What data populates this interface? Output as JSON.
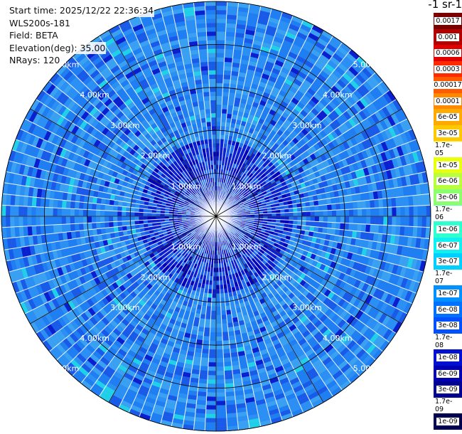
{
  "info": {
    "start_time": "Start time: 2025/12/22 22:36:34",
    "instrument": "WLS200s-181",
    "field": "Field: BETA",
    "elevation": "Elevation(deg): 35.00",
    "nrays": "NRays: 120"
  },
  "colorbar": {
    "title": "-1 sr-1",
    "labels": [
      "0.0017",
      "0.001",
      "0.0006",
      "0.0003",
      "0.00017",
      "0.0001",
      "6e-05",
      "3e-05",
      "1.7e-05",
      "1e-05",
      "6e-06",
      "3e-06",
      "1.7e-06",
      "1e-06",
      "6e-07",
      "3e-07",
      "1.7e-07",
      "1e-07",
      "6e-08",
      "3e-08",
      "1.7e-08",
      "1e-08",
      "6e-09",
      "3e-09",
      "1.7e-09",
      "1e-09"
    ],
    "colors": [
      "#7a0000",
      "#b00000",
      "#e00000",
      "#ff2a00",
      "#ff5a00",
      "#ff8a00",
      "#ffaa00",
      "#ffc800",
      "#ffe800",
      "#e8ff10",
      "#b8ff40",
      "#8cff70",
      "#60ffa0",
      "#30ffd0",
      "#10f0f0",
      "#00d0ff",
      "#00b0ff",
      "#0090ff",
      "#0070ff",
      "#0050ff",
      "#0030f0",
      "#0010d0",
      "#0000b0",
      "#000090",
      "#000070",
      "#000050"
    ]
  },
  "chart_data": {
    "type": "heatmap",
    "projection": "polar (PPI scan)",
    "title": "",
    "field": "BETA",
    "rays": 120,
    "elevation_deg": 35.0,
    "range_rings_km": [
      1,
      2,
      3,
      4,
      5
    ],
    "ring_labels": [
      "1.00km",
      "2.00km",
      "3.00km",
      "4.00km",
      "5.00km"
    ],
    "ring_label_bearings_deg": [
      45,
      135,
      225,
      315
    ],
    "max_range_km": 5.0,
    "color_scale": "log",
    "clim": [
      1e-09,
      0.0017
    ],
    "dominant_range": [
      "1e-08",
      "3e-08"
    ],
    "grid": true
  }
}
